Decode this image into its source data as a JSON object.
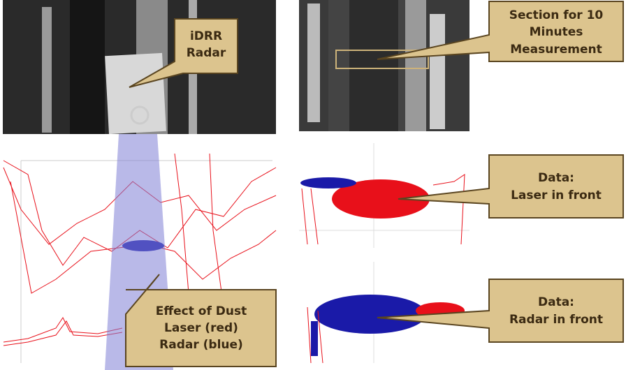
{
  "callouts": [
    {
      "lines": [
        "iDRR",
        "Radar"
      ]
    },
    {
      "lines": [
        "Section for 10",
        "Minutes",
        "Measurement"
      ]
    },
    {
      "lines": [
        "Data:",
        "Laser in front"
      ]
    },
    {
      "lines": [
        "Data:",
        "Radar in front"
      ]
    },
    {
      "lines": [
        "Effect of Dust",
        "Laser (red)",
        "Radar (blue)"
      ]
    }
  ]
}
